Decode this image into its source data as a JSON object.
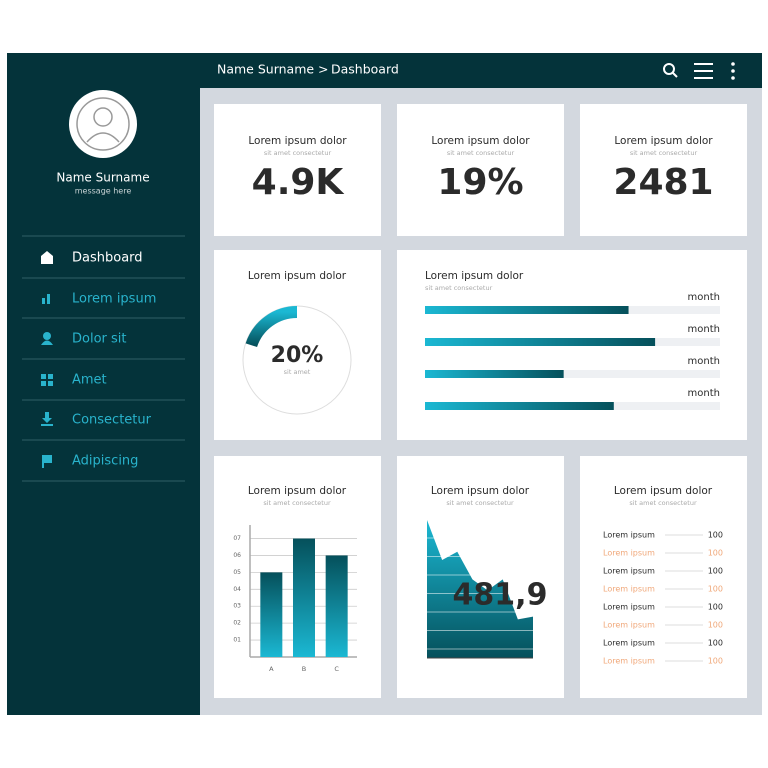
{
  "header": {
    "breadcrumb": "Name Surname >",
    "page": "Dashboard"
  },
  "sidebar": {
    "name": "Name Surname",
    "message": "message here",
    "nav": [
      "Dashboard",
      "Lorem ipsum",
      "Dolor sit",
      "Amet",
      "Consectetur",
      "Adipiscing"
    ]
  },
  "kpis": [
    {
      "title": "Lorem ipsum dolor",
      "subtitle": "sit amet consectetur",
      "value": "4.9K"
    },
    {
      "title": "Lorem ipsum dolor",
      "subtitle": "sit amet consectetur",
      "value": "19%"
    },
    {
      "title": "Lorem ipsum dolor",
      "subtitle": "sit amet consectetur",
      "value": "2481"
    }
  ],
  "donut": {
    "type": "donut",
    "title": "Lorem ipsum dolor",
    "value": 20,
    "value_label": "20%",
    "caption": "sit amet"
  },
  "progress": {
    "type": "bar",
    "title": "Lorem ipsum dolor",
    "subtitle": "sit amet consectetur",
    "labels": [
      "month",
      "month",
      "month",
      "month"
    ],
    "values": [
      69,
      78,
      47,
      64
    ],
    "xlim": [
      0,
      100
    ]
  },
  "bar_chart": {
    "type": "bar",
    "title": "Lorem ipsum dolor",
    "subtitle": "sit amet consectetur",
    "categories": [
      "A",
      "B",
      "C"
    ],
    "values": [
      5,
      7,
      6
    ],
    "ylim": [
      0,
      7.8
    ],
    "yticks": [
      {
        "value": 1,
        "label": "01"
      },
      {
        "value": 2,
        "label": "02"
      },
      {
        "value": 3,
        "label": "03"
      },
      {
        "value": 4,
        "label": "04"
      },
      {
        "value": 5,
        "label": "05"
      },
      {
        "value": 6,
        "label": "06"
      },
      {
        "value": 7,
        "label": "07"
      }
    ]
  },
  "area_chart": {
    "type": "area",
    "title": "Lorem ipsum dolor",
    "subtitle": "sit amet consectetur",
    "value_text": "481,9",
    "values": [
      100,
      71,
      77,
      57,
      49,
      57,
      28,
      30
    ],
    "ylim": [
      0,
      100
    ]
  },
  "list": {
    "title": "Lorem ipsum dolor",
    "subtitle": "sit amet consectetur",
    "rows": [
      [
        "Lorem ipsum",
        "100"
      ],
      [
        "Lorem ipsum",
        "100"
      ],
      [
        "Lorem ipsum",
        "100"
      ],
      [
        "Lorem ipsum",
        "100"
      ],
      [
        "Lorem ipsum",
        "100"
      ],
      [
        "Lorem ipsum",
        "100"
      ],
      [
        "Lorem ipsum",
        "100"
      ],
      [
        "Lorem ipsum",
        "100"
      ]
    ]
  }
}
